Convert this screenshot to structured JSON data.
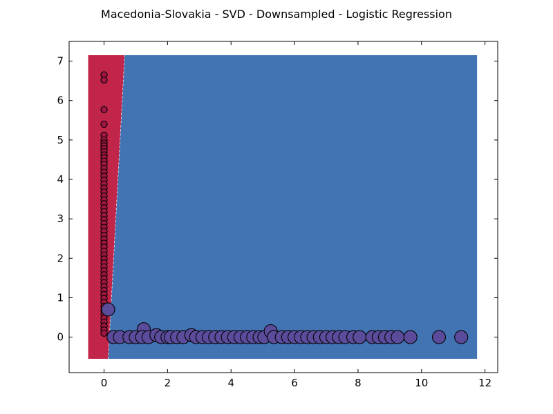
{
  "chart_data": {
    "type": "scatter",
    "title": "Macedonia-Slovakia - SVD - Downsampled - Logistic Regression",
    "xlabel": "",
    "ylabel": "",
    "xlim": [
      -1.1,
      12.4
    ],
    "ylim": [
      -0.9,
      7.5
    ],
    "grid": false,
    "legend": "none",
    "x_ticks": [
      "0",
      "2",
      "4",
      "6",
      "8",
      "10",
      "12"
    ],
    "y_ticks": [
      "0",
      "1",
      "2",
      "3",
      "4",
      "5",
      "6",
      "7"
    ],
    "x_tick_values": [
      0,
      2,
      4,
      6,
      8,
      10,
      12
    ],
    "y_tick_values": [
      0,
      1,
      2,
      3,
      4,
      5,
      6,
      7
    ],
    "decision_regions": {
      "bounds": {
        "x": [
          -0.5,
          11.75
        ],
        "y": [
          -0.55,
          7.15
        ]
      },
      "boundary_line": [
        [
          0.13,
          -0.55
        ],
        [
          0.65,
          7.15
        ]
      ],
      "left_region_color": "#c2254a",
      "right_region_color": "#4274b3"
    },
    "series": [
      {
        "color": "#a01642",
        "marker_size": "small",
        "points": [
          [
            0,
            6.65
          ],
          [
            0,
            6.52
          ],
          [
            0,
            5.77
          ],
          [
            0,
            5.4
          ],
          [
            0,
            5.12
          ],
          [
            0,
            5.0
          ],
          [
            0,
            4.92
          ],
          [
            0,
            4.85
          ],
          [
            0,
            4.78
          ],
          [
            0,
            4.7
          ],
          [
            0,
            4.62
          ],
          [
            0,
            4.55
          ],
          [
            0,
            4.46
          ],
          [
            0,
            4.38
          ],
          [
            0,
            4.28
          ],
          [
            0,
            4.18
          ],
          [
            0,
            4.08
          ],
          [
            0,
            3.98
          ],
          [
            0,
            3.88
          ],
          [
            0,
            3.78
          ],
          [
            0,
            3.68
          ],
          [
            0,
            3.58
          ],
          [
            0,
            3.48
          ],
          [
            0,
            3.38
          ],
          [
            0,
            3.28
          ],
          [
            0,
            3.18
          ],
          [
            0,
            3.08
          ],
          [
            0,
            2.98
          ],
          [
            0,
            2.88
          ],
          [
            0,
            2.78
          ],
          [
            0,
            2.68
          ],
          [
            0,
            2.58
          ],
          [
            0,
            2.48
          ],
          [
            0,
            2.38
          ],
          [
            0,
            2.28
          ],
          [
            0,
            2.18
          ],
          [
            0,
            2.08
          ],
          [
            0,
            1.98
          ],
          [
            0,
            1.88
          ],
          [
            0,
            1.78
          ],
          [
            0,
            1.68
          ],
          [
            0,
            1.58
          ],
          [
            0,
            1.48
          ],
          [
            0,
            1.38
          ],
          [
            0,
            1.28
          ],
          [
            0,
            1.18
          ],
          [
            0,
            1.08
          ],
          [
            0,
            0.98
          ],
          [
            0,
            0.88
          ],
          [
            0,
            0.78
          ],
          [
            0,
            0.68
          ],
          [
            0,
            0.58
          ],
          [
            0,
            0.48
          ],
          [
            0,
            0.38
          ],
          [
            0,
            0.28
          ],
          [
            0,
            0.18
          ],
          [
            0,
            0.1
          ]
        ]
      },
      {
        "color": "#5b4b9b",
        "marker_size": "large",
        "points": [
          [
            0.13,
            0.7
          ],
          [
            0.3,
            0.0
          ],
          [
            0.5,
            0.0
          ],
          [
            0.8,
            0.0
          ],
          [
            1.0,
            0.0
          ],
          [
            1.25,
            0.2
          ],
          [
            1.2,
            0.0
          ],
          [
            1.4,
            0.0
          ],
          [
            1.65,
            0.05
          ],
          [
            1.8,
            0.0
          ],
          [
            2.0,
            0.0
          ],
          [
            2.1,
            0.0
          ],
          [
            2.3,
            0.0
          ],
          [
            2.5,
            0.0
          ],
          [
            2.75,
            0.05
          ],
          [
            2.9,
            0.0
          ],
          [
            3.1,
            0.0
          ],
          [
            3.3,
            0.0
          ],
          [
            3.5,
            0.0
          ],
          [
            3.7,
            0.0
          ],
          [
            3.9,
            0.0
          ],
          [
            4.1,
            0.0
          ],
          [
            4.3,
            0.0
          ],
          [
            4.5,
            0.0
          ],
          [
            4.7,
            0.0
          ],
          [
            4.9,
            0.0
          ],
          [
            5.05,
            0.0
          ],
          [
            5.25,
            0.15
          ],
          [
            5.35,
            0.0
          ],
          [
            5.6,
            0.0
          ],
          [
            5.8,
            0.0
          ],
          [
            6.0,
            0.0
          ],
          [
            6.2,
            0.0
          ],
          [
            6.4,
            0.0
          ],
          [
            6.6,
            0.0
          ],
          [
            6.8,
            0.0
          ],
          [
            7.0,
            0.0
          ],
          [
            7.2,
            0.0
          ],
          [
            7.4,
            0.0
          ],
          [
            7.6,
            0.0
          ],
          [
            7.85,
            0.0
          ],
          [
            8.05,
            0.0
          ],
          [
            8.45,
            0.0
          ],
          [
            8.65,
            0.0
          ],
          [
            8.85,
            0.0
          ],
          [
            9.05,
            0.0
          ],
          [
            9.25,
            0.0
          ],
          [
            9.65,
            0.0
          ],
          [
            10.55,
            0.0
          ],
          [
            11.25,
            0.0
          ]
        ]
      }
    ]
  }
}
